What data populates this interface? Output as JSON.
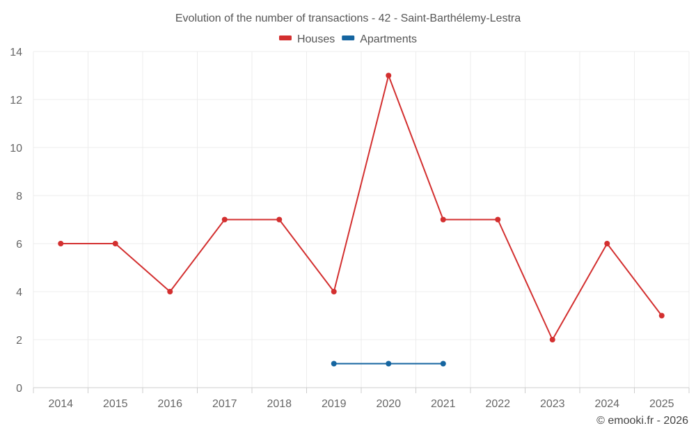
{
  "chart_data": {
    "type": "line",
    "title": "Evolution of the number of transactions - 42 - Saint-Barthélemy-Lestra",
    "categories": [
      "2014",
      "2015",
      "2016",
      "2017",
      "2018",
      "2019",
      "2020",
      "2021",
      "2022",
      "2023",
      "2024",
      "2025"
    ],
    "series": [
      {
        "name": "Houses",
        "color": "#d32f2f",
        "values": [
          6,
          6,
          4,
          7,
          7,
          4,
          13,
          7,
          7,
          2,
          6,
          3
        ]
      },
      {
        "name": "Apartments",
        "color": "#1565a0",
        "values": [
          null,
          null,
          null,
          null,
          null,
          1,
          1,
          1,
          null,
          null,
          null,
          null
        ]
      }
    ],
    "xlabel": "",
    "ylabel": "",
    "ylim": [
      0,
      14
    ],
    "yticks": [
      "0",
      "2",
      "4",
      "6",
      "8",
      "10",
      "12",
      "14"
    ],
    "grid": true,
    "legend_position": "top-center"
  },
  "credit": "© emooki.fr - 2026"
}
